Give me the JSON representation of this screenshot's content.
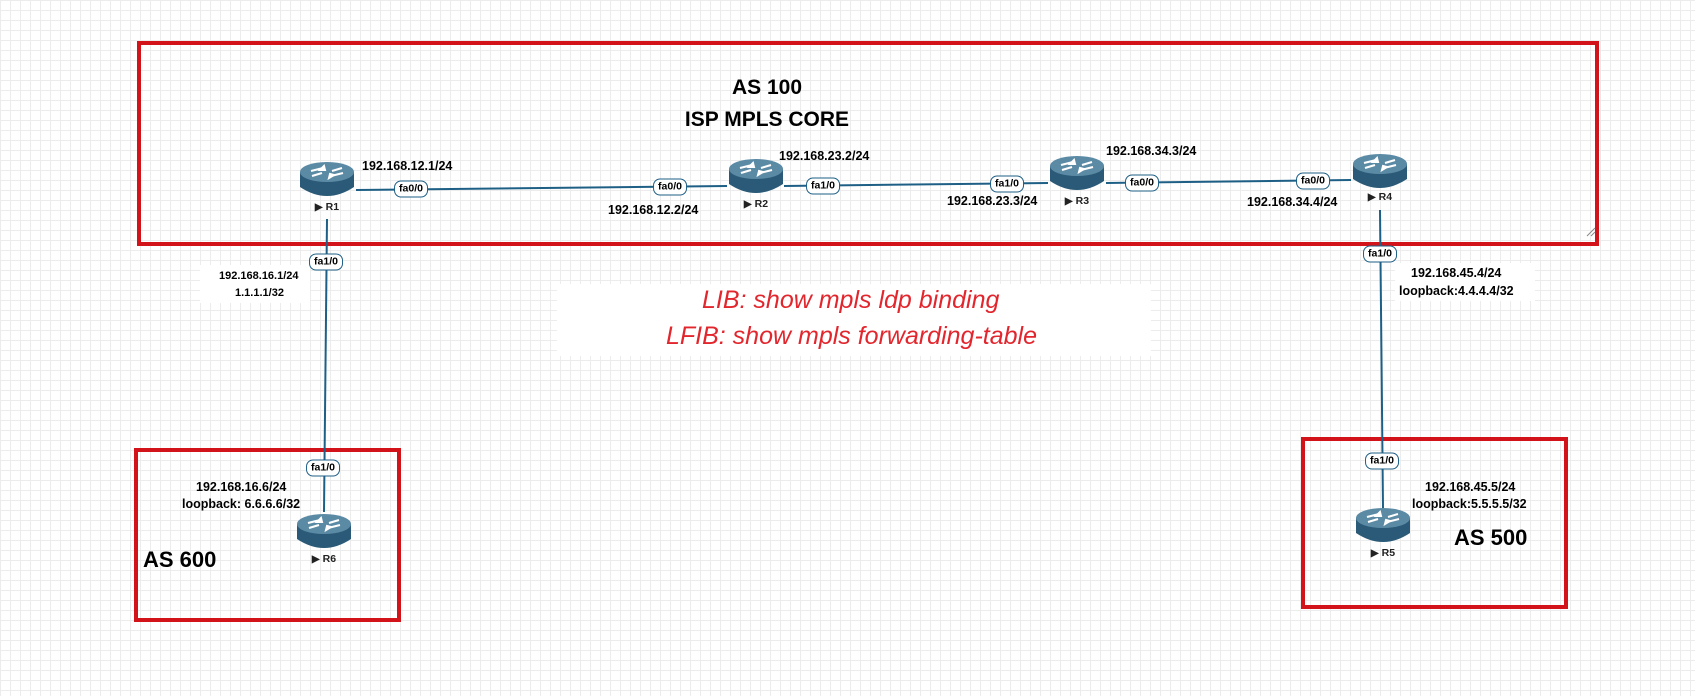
{
  "as_boxes": {
    "as100": {
      "title_line1": "AS 100",
      "title_line2": "ISP MPLS CORE"
    },
    "as600": {
      "label": "AS 600"
    },
    "as500": {
      "label": "AS 500"
    }
  },
  "notes": {
    "lib": "LIB: show mpls ldp binding",
    "lfib": "LFIB: show mpls forwarding-table"
  },
  "routers": {
    "r1": {
      "name": "R1"
    },
    "r2": {
      "name": "R2"
    },
    "r3": {
      "name": "R3"
    },
    "r4": {
      "name": "R4"
    },
    "r5": {
      "name": "R5"
    },
    "r6": {
      "name": "R6"
    }
  },
  "interfaces": {
    "r1_fa00": "fa0/0",
    "r2_fa00": "fa0/0",
    "r2_fa10": "fa1/0",
    "r3_fa10": "fa1/0",
    "r3_fa00": "fa0/0",
    "r4_fa00": "fa0/0",
    "r1_fa10": "fa1/0",
    "r6_fa10": "fa1/0",
    "r4_fa10": "fa1/0",
    "r5_fa10": "fa1/0"
  },
  "addresses": {
    "r1_r2_r1": "192.168.12.1/24",
    "r1_r2_r2": "192.168.12.2/24",
    "r2_r3_r2": "192.168.23.2/24",
    "r2_r3_r3": "192.168.23.3/24",
    "r3_r4_r3": "192.168.34.3/24",
    "r3_r4_r4": "192.168.34.4/24",
    "r1_r6_r1": "192.168.16.1/24",
    "r1_loopback": "1.1.1.1/32",
    "r4_r5_r4": "192.168.45.4/24",
    "r4_loopback": "loopback:4.4.4.4/32",
    "r1_r6_r6": "192.168.16.6/24",
    "r6_loopback": "loopback: 6.6.6.6/32",
    "r4_r5_r5": "192.168.45.5/24",
    "r5_loopback": "loopback:5.5.5.5/32"
  },
  "colors": {
    "as_border": "#d3131a",
    "link": "#1e5f86",
    "router_body": "#3d6e8a",
    "note_text": "#e2262d"
  }
}
